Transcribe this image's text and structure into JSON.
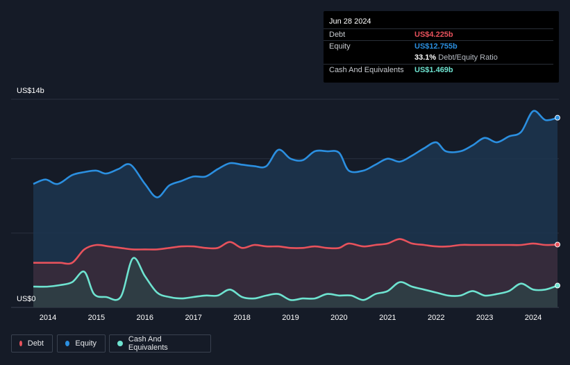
{
  "tooltip": {
    "date": "Jun 28 2024",
    "debt_label": "Debt",
    "debt_value": "US$4.225b",
    "equity_label": "Equity",
    "equity_value": "US$12.755b",
    "ratio_value": "33.1%",
    "ratio_label": "Debt/Equity Ratio",
    "cash_label": "Cash And Equivalents",
    "cash_value": "US$1.469b"
  },
  "legend": [
    {
      "label": "Debt",
      "color": "#e8525c"
    },
    {
      "label": "Equity",
      "color": "#2b8fe0"
    },
    {
      "label": "Cash And Equivalents",
      "color": "#6ee3d0"
    }
  ],
  "chart_data": {
    "type": "area",
    "ylabel_top": "US$14b",
    "ylabel_bottom": "US$0",
    "ylim": [
      0,
      14
    ],
    "xlim": [
      2013.7,
      2024.5
    ],
    "x_ticks": [
      "2014",
      "2015",
      "2016",
      "2017",
      "2018",
      "2019",
      "2020",
      "2021",
      "2022",
      "2023",
      "2024"
    ],
    "grid": true,
    "legend_position": "bottom-left",
    "colors": {
      "debt": "#e8525c",
      "equity": "#2b8fe0",
      "cash": "#6ee3d0"
    },
    "series": [
      {
        "name": "Equity",
        "x": [
          2013.7,
          2013.95,
          2014.2,
          2014.5,
          2014.75,
          2015.0,
          2015.2,
          2015.45,
          2015.7,
          2016.0,
          2016.25,
          2016.5,
          2016.75,
          2017.0,
          2017.25,
          2017.5,
          2017.75,
          2018.0,
          2018.25,
          2018.5,
          2018.75,
          2019.0,
          2019.25,
          2019.5,
          2019.75,
          2020.0,
          2020.2,
          2020.5,
          2020.75,
          2021.0,
          2021.25,
          2021.5,
          2021.75,
          2022.0,
          2022.2,
          2022.5,
          2022.75,
          2023.0,
          2023.25,
          2023.5,
          2023.75,
          2024.0,
          2024.25,
          2024.5
        ],
        "values": [
          8.3,
          8.6,
          8.3,
          8.9,
          9.1,
          9.2,
          9.0,
          9.3,
          9.6,
          8.3,
          7.4,
          8.2,
          8.5,
          8.8,
          8.8,
          9.3,
          9.7,
          9.6,
          9.5,
          9.5,
          10.6,
          10.0,
          9.9,
          10.5,
          10.5,
          10.4,
          9.2,
          9.2,
          9.6,
          10.0,
          9.8,
          10.2,
          10.7,
          11.1,
          10.5,
          10.5,
          10.9,
          11.4,
          11.1,
          11.5,
          11.8,
          13.2,
          12.6,
          12.755
        ]
      },
      {
        "name": "Debt",
        "x": [
          2013.7,
          2014.0,
          2014.25,
          2014.5,
          2014.75,
          2015.0,
          2015.25,
          2015.5,
          2015.75,
          2016.0,
          2016.25,
          2016.5,
          2016.75,
          2017.0,
          2017.25,
          2017.5,
          2017.75,
          2018.0,
          2018.25,
          2018.5,
          2018.75,
          2019.0,
          2019.25,
          2019.5,
          2019.75,
          2020.0,
          2020.2,
          2020.5,
          2020.75,
          2021.0,
          2021.25,
          2021.5,
          2021.75,
          2022.0,
          2022.25,
          2022.5,
          2022.75,
          2023.0,
          2023.25,
          2023.5,
          2023.75,
          2024.0,
          2024.25,
          2024.5
        ],
        "values": [
          3.0,
          3.0,
          3.0,
          3.0,
          3.9,
          4.2,
          4.1,
          4.0,
          3.9,
          3.9,
          3.9,
          4.0,
          4.1,
          4.1,
          4.0,
          4.0,
          4.4,
          4.0,
          4.2,
          4.1,
          4.1,
          4.0,
          4.0,
          4.1,
          4.0,
          4.0,
          4.3,
          4.1,
          4.2,
          4.3,
          4.6,
          4.3,
          4.2,
          4.1,
          4.1,
          4.2,
          4.2,
          4.2,
          4.2,
          4.2,
          4.2,
          4.3,
          4.2,
          4.225
        ]
      },
      {
        "name": "Cash And Equivalents",
        "x": [
          2013.7,
          2014.0,
          2014.25,
          2014.5,
          2014.75,
          2014.95,
          2015.2,
          2015.5,
          2015.75,
          2016.0,
          2016.25,
          2016.5,
          2016.75,
          2017.0,
          2017.25,
          2017.5,
          2017.75,
          2018.0,
          2018.25,
          2018.5,
          2018.75,
          2019.0,
          2019.25,
          2019.5,
          2019.75,
          2020.0,
          2020.25,
          2020.5,
          2020.75,
          2021.0,
          2021.25,
          2021.5,
          2021.75,
          2022.0,
          2022.25,
          2022.5,
          2022.75,
          2023.0,
          2023.25,
          2023.5,
          2023.75,
          2024.0,
          2024.25,
          2024.5
        ],
        "values": [
          1.4,
          1.4,
          1.5,
          1.7,
          2.4,
          0.9,
          0.7,
          0.7,
          3.3,
          2.1,
          1.0,
          0.7,
          0.6,
          0.7,
          0.8,
          0.8,
          1.2,
          0.7,
          0.6,
          0.8,
          0.9,
          0.5,
          0.6,
          0.6,
          0.9,
          0.8,
          0.8,
          0.5,
          0.9,
          1.1,
          1.7,
          1.4,
          1.2,
          1.0,
          0.8,
          0.8,
          1.1,
          0.8,
          0.9,
          1.1,
          1.6,
          1.2,
          1.2,
          1.469
        ]
      }
    ]
  }
}
